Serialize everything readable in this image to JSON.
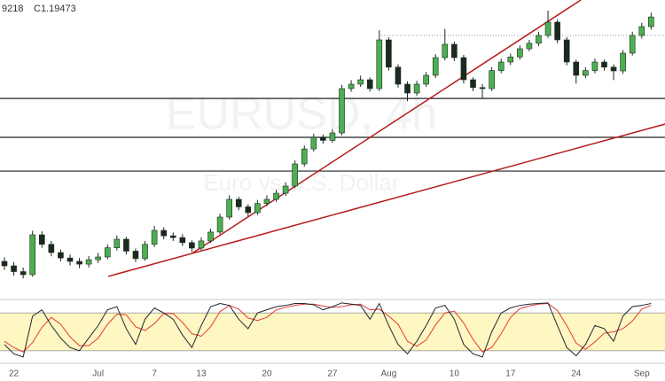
{
  "header": {
    "ohlc_fragment": "9218",
    "close_label": "C1.19473"
  },
  "watermark": {
    "symbol": "EURUSD, 4h",
    "description": "Euro vs U.S. Dollar"
  },
  "chart_data": [
    {
      "type": "candlestick",
      "categories": [
        null,
        "22",
        null,
        null,
        null,
        null,
        null,
        null,
        null,
        null,
        "Jul",
        null,
        null,
        null,
        null,
        null,
        "7",
        null,
        null,
        null,
        null,
        "13",
        null,
        null,
        null,
        null,
        null,
        null,
        "20",
        null,
        null,
        null,
        null,
        null,
        null,
        "27",
        null,
        null,
        null,
        null,
        null,
        "Aug",
        null,
        null,
        null,
        null,
        null,
        null,
        "10",
        null,
        null,
        null,
        null,
        null,
        "17",
        null,
        null,
        null,
        null,
        null,
        null,
        "24",
        null,
        null,
        null,
        null,
        null,
        null,
        "Sep",
        null
      ],
      "ohlc": [
        [
          1.123,
          1.1242,
          1.1205,
          1.1217
        ],
        [
          1.1217,
          1.1228,
          1.1188,
          1.12
        ],
        [
          1.12,
          1.1212,
          1.118,
          1.1191
        ],
        [
          1.1191,
          1.132,
          1.1185,
          1.1308
        ],
        [
          1.1308,
          1.1318,
          1.127,
          1.128
        ],
        [
          1.128,
          1.129,
          1.1245,
          1.1256
        ],
        [
          1.1256,
          1.1265,
          1.123,
          1.124
        ],
        [
          1.124,
          1.125,
          1.1218,
          1.123
        ],
        [
          1.123,
          1.124,
          1.121,
          1.1222
        ],
        [
          1.1222,
          1.1246,
          1.1212,
          1.1235
        ],
        [
          1.1235,
          1.1255,
          1.1225,
          1.1243
        ],
        [
          1.1243,
          1.128,
          1.1236,
          1.127
        ],
        [
          1.127,
          1.1306,
          1.1262,
          1.1295
        ],
        [
          1.1295,
          1.1302,
          1.125,
          1.126
        ],
        [
          1.126,
          1.1268,
          1.1228,
          1.1238
        ],
        [
          1.1238,
          1.129,
          1.1232,
          1.128
        ],
        [
          1.128,
          1.1334,
          1.1272,
          1.1321
        ],
        [
          1.1321,
          1.133,
          1.1295,
          1.1305
        ],
        [
          1.1305,
          1.1315,
          1.129,
          1.13
        ],
        [
          1.13,
          1.131,
          1.1275,
          1.1285
        ],
        [
          1.1285,
          1.1292,
          1.1258,
          1.1269
        ],
        [
          1.1269,
          1.13,
          1.1262,
          1.129
        ],
        [
          1.129,
          1.1326,
          1.1284,
          1.1316
        ],
        [
          1.1316,
          1.137,
          1.131,
          1.136
        ],
        [
          1.136,
          1.1424,
          1.1352,
          1.1412
        ],
        [
          1.1412,
          1.142,
          1.138,
          1.139
        ],
        [
          1.139,
          1.1398,
          1.1362,
          1.1373
        ],
        [
          1.1373,
          1.141,
          1.1366,
          1.14
        ],
        [
          1.14,
          1.1424,
          1.1392,
          1.1412
        ],
        [
          1.1412,
          1.144,
          1.1405,
          1.143
        ],
        [
          1.143,
          1.1462,
          1.1422,
          1.1451
        ],
        [
          1.1451,
          1.1526,
          1.1445,
          1.1516
        ],
        [
          1.1516,
          1.157,
          1.1508,
          1.156
        ],
        [
          1.156,
          1.1605,
          1.1552,
          1.1594
        ],
        [
          1.1594,
          1.1602,
          1.1575,
          1.1585
        ],
        [
          1.1585,
          1.1618,
          1.1578,
          1.1607
        ],
        [
          1.1607,
          1.1748,
          1.16,
          1.1737
        ],
        [
          1.1737,
          1.1762,
          1.1728,
          1.175
        ],
        [
          1.175,
          1.1775,
          1.1742,
          1.1763
        ],
        [
          1.1763,
          1.177,
          1.1728,
          1.1737
        ],
        [
          1.1737,
          1.1908,
          1.173,
          1.188
        ],
        [
          1.188,
          1.1888,
          1.179,
          1.18
        ],
        [
          1.18,
          1.1808,
          1.174,
          1.175
        ],
        [
          1.175,
          1.1758,
          1.17,
          1.1724
        ],
        [
          1.1724,
          1.176,
          1.1716,
          1.175
        ],
        [
          1.175,
          1.1786,
          1.1742,
          1.1776
        ],
        [
          1.1776,
          1.1838,
          1.1768,
          1.1828
        ],
        [
          1.1828,
          1.1912,
          1.182,
          1.1867
        ],
        [
          1.1867,
          1.1875,
          1.1818,
          1.1828
        ],
        [
          1.1828,
          1.1836,
          1.1752,
          1.1763
        ],
        [
          1.1763,
          1.177,
          1.173,
          1.174
        ],
        [
          1.174,
          1.175,
          1.1708,
          1.1737
        ],
        [
          1.1737,
          1.18,
          1.173,
          1.179
        ],
        [
          1.179,
          1.1825,
          1.1782,
          1.1815
        ],
        [
          1.1815,
          1.184,
          1.1806,
          1.183
        ],
        [
          1.183,
          1.1864,
          1.1822,
          1.1854
        ],
        [
          1.1854,
          1.188,
          1.1846,
          1.187
        ],
        [
          1.187,
          1.1904,
          1.1862,
          1.1893
        ],
        [
          1.1893,
          1.1966,
          1.1886,
          1.1932
        ],
        [
          1.1932,
          1.194,
          1.187,
          1.188
        ],
        [
          1.188,
          1.1888,
          1.1805,
          1.1815
        ],
        [
          1.1815,
          1.1822,
          1.1752,
          1.1776
        ],
        [
          1.1776,
          1.18,
          1.1768,
          1.179
        ],
        [
          1.179,
          1.1825,
          1.1782,
          1.1815
        ],
        [
          1.1815,
          1.1822,
          1.179,
          1.18
        ],
        [
          1.18,
          1.1808,
          1.1762,
          1.1789
        ],
        [
          1.1789,
          1.185,
          1.178,
          1.1841
        ],
        [
          1.1841,
          1.1904,
          1.1834,
          1.1893
        ],
        [
          1.1893,
          1.193,
          1.1884,
          1.1919
        ],
        [
          1.1919,
          1.196,
          1.191,
          1.19473
        ]
      ],
      "up_color": "#4caf50",
      "down_color": "#1b2a1f",
      "ylim": [
        1.1126,
        1.1997
      ],
      "levels": [
        1.1708,
        1.1594,
        1.1495
      ],
      "level_color": "#222222",
      "dotted_level": 1.1893,
      "trendlines": [
        {
          "x": [
            20,
            61.5
          ],
          "y": [
            1.1253,
            1.1997
          ]
        },
        {
          "x": [
            11.07,
            70.5
          ],
          "y": [
            1.1186,
            1.1633
          ]
        }
      ],
      "trend_color": "#b71c1c"
    },
    {
      "type": "line",
      "ylim": [
        0,
        100
      ],
      "band": [
        20,
        80
      ],
      "band_color": "#fff7c2",
      "series": [
        {
          "color": "#1f2433",
          "values": [
            30,
            15,
            10,
            75,
            85,
            60,
            40,
            25,
            20,
            40,
            60,
            85,
            90,
            55,
            30,
            70,
            88,
            80,
            70,
            45,
            25,
            60,
            90,
            95,
            92,
            70,
            55,
            80,
            85,
            90,
            92,
            95,
            95,
            93,
            85,
            90,
            96,
            94,
            92,
            70,
            95,
            60,
            30,
            15,
            35,
            60,
            88,
            92,
            70,
            30,
            15,
            10,
            50,
            80,
            88,
            92,
            94,
            95,
            96,
            60,
            25,
            12,
            30,
            60,
            55,
            35,
            75,
            90,
            92,
            95
          ]
        },
        {
          "color": "#e53935",
          "values": [
            35,
            25,
            18,
            33,
            57,
            73,
            62,
            42,
            28,
            28,
            40,
            62,
            78,
            77,
            58,
            52,
            63,
            79,
            79,
            65,
            47,
            43,
            58,
            82,
            92,
            86,
            72,
            68,
            73,
            85,
            89,
            92,
            94,
            94,
            91,
            89,
            90,
            93,
            94,
            85,
            86,
            75,
            62,
            35,
            27,
            37,
            61,
            80,
            83,
            64,
            38,
            18,
            25,
            47,
            73,
            87,
            91,
            94,
            95,
            84,
            60,
            32,
            22,
            34,
            48,
            50,
            55,
            67,
            86,
            92
          ]
        }
      ]
    }
  ]
}
